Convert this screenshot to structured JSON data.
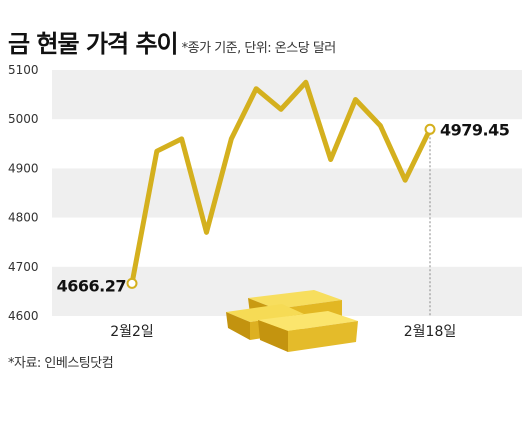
{
  "header": {
    "title": "금 현물 가격 추이",
    "subtitle": "*종가 기준, 단위: 온스당 달러"
  },
  "footer": {
    "source": "*자료: 인베스팅닷컴"
  },
  "colors": {
    "line": "#D4B01E",
    "band": "#EFEFEF",
    "gold_light": "#F6DB55",
    "gold_dark": "#C79A12"
  },
  "chart_data": {
    "type": "line",
    "title": "금 현물 가격 추이",
    "ylim": [
      4600,
      5100
    ],
    "yticks": [
      4600,
      4700,
      4800,
      4900,
      5000,
      5100
    ],
    "xtick_labels": [
      {
        "index": 0,
        "label": "2월2일"
      },
      {
        "index": 12,
        "label": "2월18일"
      }
    ],
    "values": [
      4666.27,
      4935,
      4960,
      4770,
      4960,
      5062,
      5020,
      5075,
      4918,
      5040,
      4987,
      4876,
      4979.45
    ],
    "data_labels": [
      {
        "index": 0,
        "text": "4666.27"
      },
      {
        "index": 12,
        "text": "4979.45"
      }
    ],
    "grid": "alternating horizontal bands"
  }
}
